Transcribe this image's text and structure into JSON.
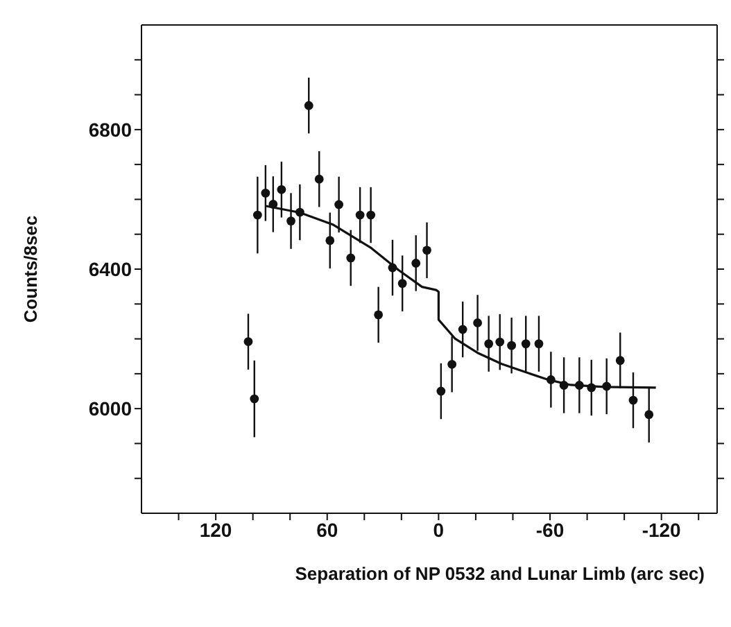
{
  "chart_data": {
    "type": "scatter",
    "xlabel": "Separation of  NP 0532 and Lunar Limb (arc sec)",
    "ylabel": "Counts/8sec",
    "xlim": [
      160,
      -150
    ],
    "xticks": [
      {
        "value": 140,
        "label": null
      },
      120,
      {
        "value": 100,
        "label": null
      },
      {
        "value": 80,
        "label": null
      },
      60,
      {
        "value": 40,
        "label": null
      },
      {
        "value": 20,
        "label": null
      },
      0,
      {
        "value": -20,
        "label": null
      },
      {
        "value": -40,
        "label": null
      },
      -60,
      {
        "value": -80,
        "label": null
      },
      {
        "value": -100,
        "label": null
      },
      -120,
      {
        "value": -140,
        "label": null
      }
    ],
    "ylim": [
      5700,
      7100
    ],
    "yticks": [
      {
        "value": 5800,
        "label": null
      },
      {
        "value": 5900,
        "label": null
      },
      6000,
      {
        "value": 6100,
        "label": null
      },
      {
        "value": 6200,
        "label": null
      },
      {
        "value": 6300,
        "label": null
      },
      6400,
      {
        "value": 6500,
        "label": null
      },
      {
        "value": 6600,
        "label": null
      },
      {
        "value": 6700,
        "label": null
      },
      6800,
      {
        "value": 6900,
        "label": null
      },
      {
        "value": 7000,
        "label": null
      }
    ],
    "grid": false,
    "legend": false,
    "series": [
      {
        "color": "#111111",
        "marker": "circle",
        "x": [
          102.5,
          99.2,
          97.5,
          93.2,
          89.1,
          84.6,
          79.5,
          74.7,
          69.9,
          64.3,
          58.5,
          53.7,
          47.3,
          42.3,
          36.5,
          32.4,
          24.8,
          19.5,
          12.2,
          6.3,
          -1.3,
          -7.2,
          -13,
          -21,
          -27,
          -33,
          -39.3,
          -47,
          -54,
          -60.5,
          -67.5,
          -75.8,
          -82.3,
          -90.5,
          -97.8,
          -104.8,
          -113.3
        ],
        "values": [
          6192,
          6028,
          6555,
          6618,
          6586,
          6628,
          6538,
          6563,
          6869,
          6658,
          6482,
          6585,
          6432,
          6555,
          6555,
          6269,
          6404,
          6359,
          6417,
          6454,
          6050,
          6127,
          6227,
          6246,
          6186,
          6191,
          6181,
          6186,
          6186,
          6083,
          6067,
          6067,
          6060,
          6064,
          6138,
          6024,
          5983
        ],
        "errors": [
          80,
          110,
          110,
          80,
          80,
          80,
          80,
          80,
          80,
          80,
          80,
          80,
          80,
          80,
          80,
          80,
          80,
          80,
          80,
          80,
          80,
          80,
          80,
          80,
          80,
          80,
          80,
          80,
          80,
          80,
          80,
          80,
          80,
          80,
          80,
          80,
          80
        ]
      },
      {
        "type": "line",
        "color": "#111111",
        "x": [
          93,
          74.7,
          57,
          36.7,
          21.5,
          8.9,
          1.3,
          0,
          0,
          -8.8,
          -21,
          -34,
          -46,
          -59,
          -71,
          -89,
          -117
        ],
        "values": [
          6581,
          6562,
          6528,
          6462,
          6397,
          6349,
          6340,
          6335,
          6255,
          6201,
          6160,
          6128,
          6106,
          6083,
          6068,
          6062,
          6060
        ]
      }
    ]
  }
}
